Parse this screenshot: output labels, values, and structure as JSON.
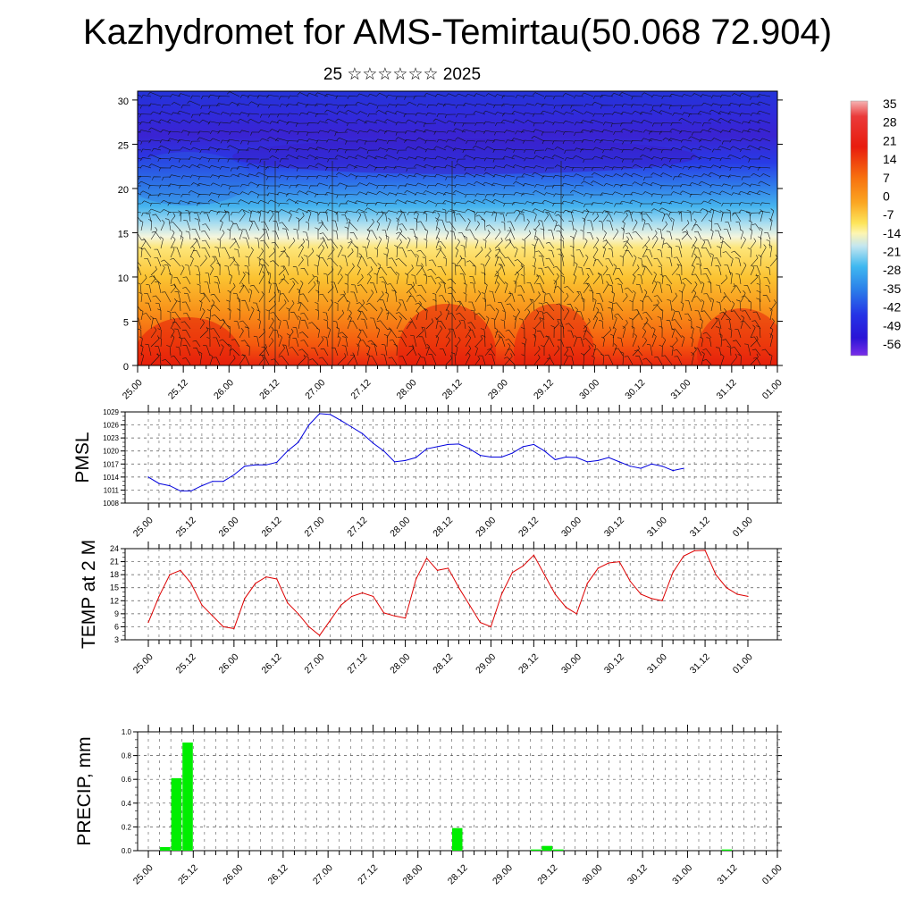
{
  "title": "Kazhydromet for AMS-Temirtau(50.068 72.904)",
  "subtitle": "25 ☆☆☆☆☆☆ 2025",
  "colors": {
    "pmsl": "#0000dd",
    "temp": "#dd0000",
    "precip": "#00ee00",
    "grid": "#555555"
  },
  "chart_data": [
    {
      "type": "heatmap",
      "name": "cross-section",
      "x_tick_labels": [
        "25.00",
        "25.12",
        "26.00",
        "26.12",
        "27.00",
        "27.12",
        "28.00",
        "28.12",
        "29.00",
        "29.12",
        "30.00",
        "30.12",
        "31.00",
        "31.12",
        "01.00"
      ],
      "ylim": [
        0,
        31
      ],
      "y_ticks": [
        0,
        5,
        10,
        15,
        20,
        25,
        30
      ],
      "colorbar": {
        "labels": [
          "35",
          "28",
          "21",
          "14",
          "7",
          "0",
          "-7",
          "-14",
          "-21",
          "-28",
          "-35",
          "-42",
          "-49",
          "-56"
        ],
        "range": [
          -60,
          38
        ]
      },
      "description_fields": [
        "temperature shading",
        "wind barbs"
      ]
    },
    {
      "type": "line",
      "ylabel": "PMSL",
      "ylim": [
        1008,
        1029
      ],
      "y_tick_labels": [
        "1029",
        "1026",
        "1023",
        "1020",
        "1017",
        "1014",
        "1011",
        "1008"
      ],
      "x_tick_labels": [
        "25.00",
        "25.12",
        "26.00",
        "26.12",
        "27.00",
        "27.12",
        "28.00",
        "28.12",
        "29.00",
        "29.12",
        "30.00",
        "30.12",
        "31.00",
        "31.12",
        "01.00"
      ],
      "x_hours_step": 3,
      "values": [
        1014,
        1012.5,
        1012,
        1010.8,
        1010.8,
        1012,
        1013,
        1013,
        1014.5,
        1016.5,
        1016.8,
        1016.8,
        1017.4,
        1020,
        1022,
        1026,
        1028.6,
        1028.4,
        1027,
        1025.5,
        1024,
        1021.8,
        1020,
        1017.5,
        1017.8,
        1018.5,
        1020.5,
        1021,
        1021.5,
        1021.6,
        1020.5,
        1019,
        1018.6,
        1018.6,
        1019.5,
        1021,
        1021.5,
        1020,
        1018,
        1018.6,
        1018.5,
        1017.5,
        1017.8,
        1018.5,
        1017.5,
        1016.5,
        1016,
        1017,
        1016.5,
        1015.5,
        1016
      ]
    },
    {
      "type": "line",
      "ylabel": "TEMP at 2 M",
      "ylim": [
        3,
        24
      ],
      "y_tick_labels": [
        "24",
        "21",
        "18",
        "15",
        "12",
        "9",
        "6",
        "3"
      ],
      "x_tick_labels": [
        "25.00",
        "25.12",
        "26.00",
        "26.12",
        "27.00",
        "27.12",
        "28.00",
        "28.12",
        "29.00",
        "29.12",
        "30.00",
        "30.12",
        "31.00",
        "31.12",
        "01.00"
      ],
      "x_hours_step": 3,
      "values": [
        7,
        13,
        18,
        19,
        16,
        11,
        8.5,
        6,
        5.6,
        12.5,
        16,
        17.5,
        17,
        11.5,
        9,
        6,
        4,
        7.5,
        11,
        13,
        13.8,
        13,
        9.2,
        8.5,
        8,
        17,
        21.8,
        19,
        19.5,
        15,
        11,
        7,
        6,
        13.5,
        18.5,
        20,
        22.5,
        18,
        13.5,
        10.5,
        9,
        16,
        19.5,
        20.7,
        21,
        16.5,
        13.5,
        12.5,
        12,
        18.5,
        22.3,
        23.5,
        23.6,
        18,
        15,
        13.5,
        13
      ]
    },
    {
      "type": "bar",
      "ylabel": "PRECIP, mm",
      "ylim": [
        0,
        1.0
      ],
      "y_tick_labels": [
        "1.0",
        "0.8",
        "0.6",
        "0.4",
        "0.2",
        "0.0"
      ],
      "x_tick_labels": [
        "25.00",
        "25.12",
        "26.00",
        "26.12",
        "27.00",
        "27.12",
        "28.00",
        "28.12",
        "29.00",
        "29.12",
        "30.00",
        "30.12",
        "31.00",
        "31.12",
        "01.00"
      ],
      "x_hours_step": 3,
      "values": [
        0,
        0.03,
        0.61,
        0.91,
        0,
        0,
        0,
        0,
        0,
        0,
        0,
        0,
        0,
        0,
        0,
        0,
        0,
        0,
        0,
        0,
        0,
        0,
        0,
        0,
        0,
        0,
        0,
        0.19,
        0,
        0,
        0,
        0,
        0,
        0,
        0.01,
        0.04,
        0.01,
        0,
        0,
        0,
        0,
        0,
        0,
        0,
        0,
        0,
        0,
        0,
        0,
        0,
        0,
        0.01,
        0,
        0,
        0,
        0
      ]
    }
  ]
}
